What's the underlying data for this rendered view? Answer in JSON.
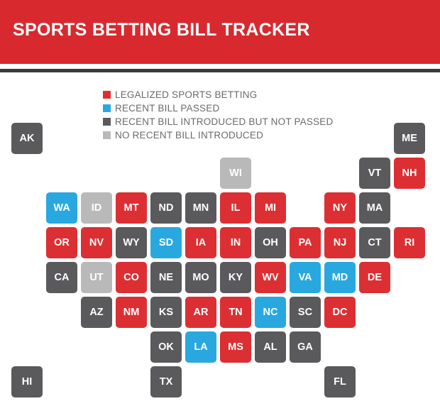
{
  "title": "SPORTS BETTING BILL TRACKER",
  "colors": {
    "header": "#d8292f",
    "legalized": "#dc2f33",
    "passed": "#29a8e0",
    "introduced": "#5a5a5c",
    "none": "#b9b9b9"
  },
  "legend": [
    {
      "status": "legalized",
      "label": "LEGALIZED SPORTS BETTING"
    },
    {
      "status": "passed",
      "label": "RECENT BILL PASSED"
    },
    {
      "status": "introduced",
      "label": "RECENT BILL INTRODUCED BUT NOT PASSED"
    },
    {
      "status": "none",
      "label": "NO RECENT BILL INTRODUCED"
    }
  ],
  "states": [
    {
      "abbr": "AK",
      "status": "introduced",
      "col": 0,
      "row": 0
    },
    {
      "abbr": "ME",
      "status": "introduced",
      "col": 11,
      "row": 0
    },
    {
      "abbr": "WI",
      "status": "none",
      "col": 6,
      "row": 1
    },
    {
      "abbr": "VT",
      "status": "introduced",
      "col": 10,
      "row": 1
    },
    {
      "abbr": "NH",
      "status": "legalized",
      "col": 11,
      "row": 1
    },
    {
      "abbr": "WA",
      "status": "passed",
      "col": 1,
      "row": 2
    },
    {
      "abbr": "ID",
      "status": "none",
      "col": 2,
      "row": 2
    },
    {
      "abbr": "MT",
      "status": "legalized",
      "col": 3,
      "row": 2
    },
    {
      "abbr": "ND",
      "status": "introduced",
      "col": 4,
      "row": 2
    },
    {
      "abbr": "MN",
      "status": "introduced",
      "col": 5,
      "row": 2
    },
    {
      "abbr": "IL",
      "status": "legalized",
      "col": 6,
      "row": 2
    },
    {
      "abbr": "MI",
      "status": "legalized",
      "col": 7,
      "row": 2
    },
    {
      "abbr": "NY",
      "status": "legalized",
      "col": 9,
      "row": 2
    },
    {
      "abbr": "MA",
      "status": "introduced",
      "col": 10,
      "row": 2
    },
    {
      "abbr": "OR",
      "status": "legalized",
      "col": 1,
      "row": 3
    },
    {
      "abbr": "NV",
      "status": "legalized",
      "col": 2,
      "row": 3
    },
    {
      "abbr": "WY",
      "status": "introduced",
      "col": 3,
      "row": 3
    },
    {
      "abbr": "SD",
      "status": "passed",
      "col": 4,
      "row": 3
    },
    {
      "abbr": "IA",
      "status": "legalized",
      "col": 5,
      "row": 3
    },
    {
      "abbr": "IN",
      "status": "legalized",
      "col": 6,
      "row": 3
    },
    {
      "abbr": "OH",
      "status": "introduced",
      "col": 7,
      "row": 3
    },
    {
      "abbr": "PA",
      "status": "legalized",
      "col": 8,
      "row": 3
    },
    {
      "abbr": "NJ",
      "status": "legalized",
      "col": 9,
      "row": 3
    },
    {
      "abbr": "CT",
      "status": "introduced",
      "col": 10,
      "row": 3
    },
    {
      "abbr": "RI",
      "status": "legalized",
      "col": 11,
      "row": 3
    },
    {
      "abbr": "CA",
      "status": "introduced",
      "col": 1,
      "row": 4
    },
    {
      "abbr": "UT",
      "status": "none",
      "col": 2,
      "row": 4
    },
    {
      "abbr": "CO",
      "status": "legalized",
      "col": 3,
      "row": 4
    },
    {
      "abbr": "NE",
      "status": "introduced",
      "col": 4,
      "row": 4
    },
    {
      "abbr": "MO",
      "status": "introduced",
      "col": 5,
      "row": 4
    },
    {
      "abbr": "KY",
      "status": "introduced",
      "col": 6,
      "row": 4
    },
    {
      "abbr": "WV",
      "status": "legalized",
      "col": 7,
      "row": 4
    },
    {
      "abbr": "VA",
      "status": "passed",
      "col": 8,
      "row": 4
    },
    {
      "abbr": "MD",
      "status": "passed",
      "col": 9,
      "row": 4
    },
    {
      "abbr": "DE",
      "status": "legalized",
      "col": 10,
      "row": 4
    },
    {
      "abbr": "AZ",
      "status": "introduced",
      "col": 2,
      "row": 5
    },
    {
      "abbr": "NM",
      "status": "legalized",
      "col": 3,
      "row": 5
    },
    {
      "abbr": "KS",
      "status": "introduced",
      "col": 4,
      "row": 5
    },
    {
      "abbr": "AR",
      "status": "legalized",
      "col": 5,
      "row": 5
    },
    {
      "abbr": "TN",
      "status": "legalized",
      "col": 6,
      "row": 5
    },
    {
      "abbr": "NC",
      "status": "passed",
      "col": 7,
      "row": 5
    },
    {
      "abbr": "SC",
      "status": "introduced",
      "col": 8,
      "row": 5
    },
    {
      "abbr": "DC",
      "status": "legalized",
      "col": 9,
      "row": 5
    },
    {
      "abbr": "OK",
      "status": "introduced",
      "col": 4,
      "row": 6
    },
    {
      "abbr": "LA",
      "status": "passed",
      "col": 5,
      "row": 6
    },
    {
      "abbr": "MS",
      "status": "legalized",
      "col": 6,
      "row": 6
    },
    {
      "abbr": "AL",
      "status": "introduced",
      "col": 7,
      "row": 6
    },
    {
      "abbr": "GA",
      "status": "introduced",
      "col": 8,
      "row": 6
    },
    {
      "abbr": "HI",
      "status": "introduced",
      "col": 0,
      "row": 7
    },
    {
      "abbr": "TX",
      "status": "introduced",
      "col": 4,
      "row": 7
    },
    {
      "abbr": "FL",
      "status": "introduced",
      "col": 9,
      "row": 7
    }
  ]
}
